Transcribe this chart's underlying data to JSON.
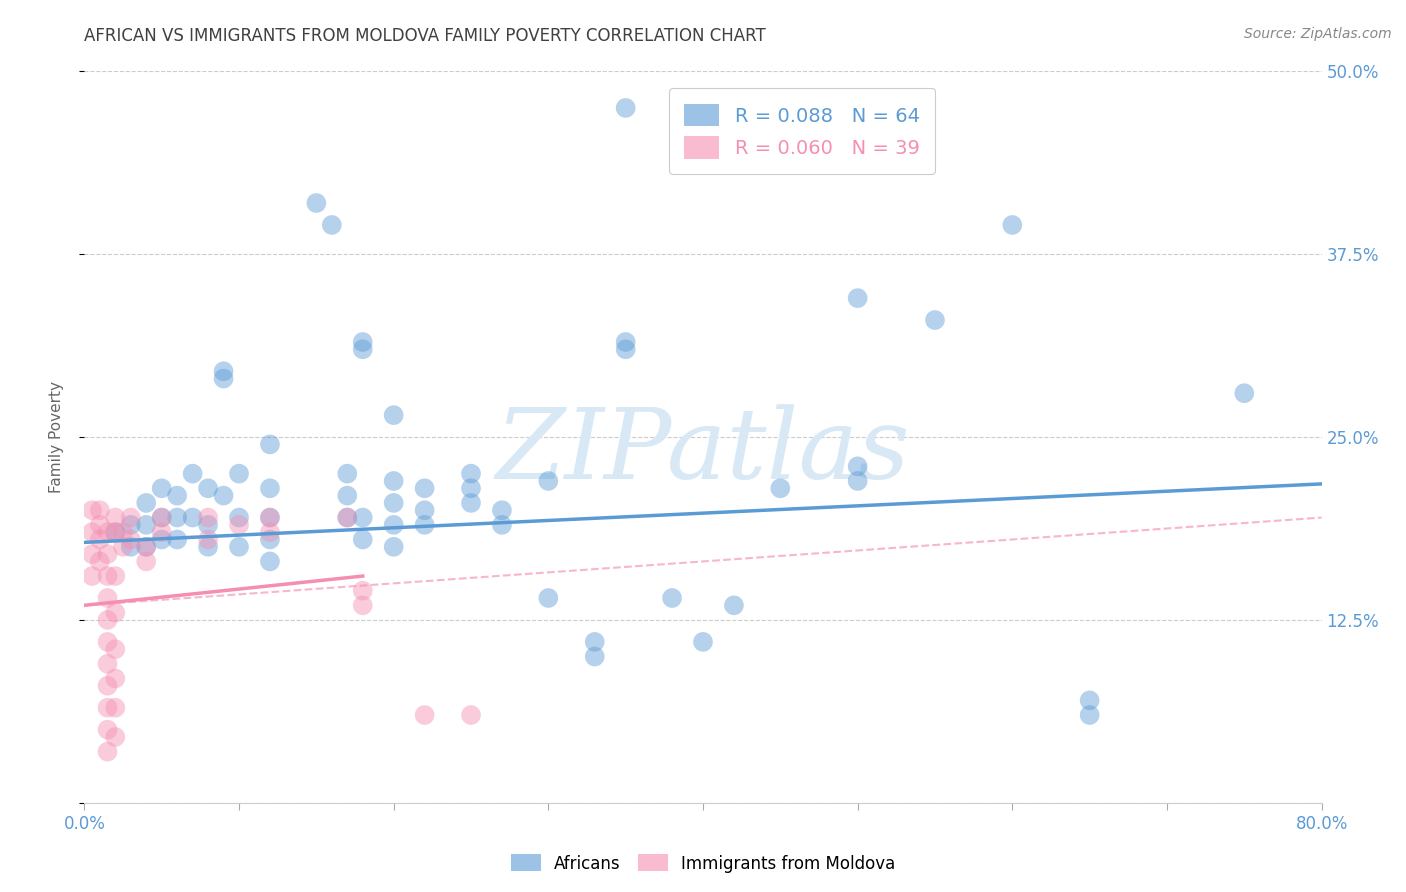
{
  "title": "AFRICAN VS IMMIGRANTS FROM MOLDOVA FAMILY POVERTY CORRELATION CHART",
  "source": "Source: ZipAtlas.com",
  "ylabel": "Family Poverty",
  "xlim": [
    0.0,
    0.8
  ],
  "ylim": [
    0.0,
    0.5
  ],
  "xticks": [
    0.0,
    0.1,
    0.2,
    0.3,
    0.4,
    0.5,
    0.6,
    0.7,
    0.8
  ],
  "yticks": [
    0.0,
    0.125,
    0.25,
    0.375,
    0.5
  ],
  "yticklabels_right": [
    "",
    "12.5%",
    "25.0%",
    "37.5%",
    "50.0%"
  ],
  "watermark": "ZIPatlas",
  "blue_color": "#5b9bd5",
  "pink_color": "#f48fb1",
  "blue_scatter": [
    [
      0.02,
      0.185
    ],
    [
      0.03,
      0.19
    ],
    [
      0.03,
      0.175
    ],
    [
      0.04,
      0.205
    ],
    [
      0.04,
      0.19
    ],
    [
      0.04,
      0.175
    ],
    [
      0.05,
      0.215
    ],
    [
      0.05,
      0.195
    ],
    [
      0.05,
      0.18
    ],
    [
      0.06,
      0.21
    ],
    [
      0.06,
      0.195
    ],
    [
      0.06,
      0.18
    ],
    [
      0.07,
      0.225
    ],
    [
      0.07,
      0.195
    ],
    [
      0.08,
      0.215
    ],
    [
      0.08,
      0.19
    ],
    [
      0.08,
      0.175
    ],
    [
      0.09,
      0.21
    ],
    [
      0.09,
      0.29
    ],
    [
      0.09,
      0.295
    ],
    [
      0.1,
      0.225
    ],
    [
      0.1,
      0.195
    ],
    [
      0.1,
      0.175
    ],
    [
      0.12,
      0.245
    ],
    [
      0.12,
      0.215
    ],
    [
      0.12,
      0.195
    ],
    [
      0.12,
      0.18
    ],
    [
      0.12,
      0.165
    ],
    [
      0.15,
      0.41
    ],
    [
      0.16,
      0.395
    ],
    [
      0.17,
      0.225
    ],
    [
      0.17,
      0.21
    ],
    [
      0.17,
      0.195
    ],
    [
      0.18,
      0.315
    ],
    [
      0.18,
      0.31
    ],
    [
      0.18,
      0.195
    ],
    [
      0.18,
      0.18
    ],
    [
      0.2,
      0.265
    ],
    [
      0.2,
      0.22
    ],
    [
      0.2,
      0.205
    ],
    [
      0.2,
      0.19
    ],
    [
      0.2,
      0.175
    ],
    [
      0.22,
      0.215
    ],
    [
      0.22,
      0.2
    ],
    [
      0.22,
      0.19
    ],
    [
      0.25,
      0.225
    ],
    [
      0.25,
      0.215
    ],
    [
      0.25,
      0.205
    ],
    [
      0.27,
      0.2
    ],
    [
      0.27,
      0.19
    ],
    [
      0.3,
      0.22
    ],
    [
      0.3,
      0.14
    ],
    [
      0.33,
      0.11
    ],
    [
      0.33,
      0.1
    ],
    [
      0.35,
      0.475
    ],
    [
      0.35,
      0.315
    ],
    [
      0.35,
      0.31
    ],
    [
      0.38,
      0.14
    ],
    [
      0.4,
      0.11
    ],
    [
      0.42,
      0.135
    ],
    [
      0.45,
      0.215
    ],
    [
      0.5,
      0.345
    ],
    [
      0.5,
      0.23
    ],
    [
      0.5,
      0.22
    ],
    [
      0.55,
      0.33
    ],
    [
      0.6,
      0.395
    ],
    [
      0.65,
      0.07
    ],
    [
      0.65,
      0.06
    ],
    [
      0.75,
      0.28
    ]
  ],
  "pink_scatter": [
    [
      0.005,
      0.2
    ],
    [
      0.005,
      0.185
    ],
    [
      0.005,
      0.17
    ],
    [
      0.005,
      0.155
    ],
    [
      0.01,
      0.2
    ],
    [
      0.01,
      0.19
    ],
    [
      0.01,
      0.18
    ],
    [
      0.01,
      0.165
    ],
    [
      0.015,
      0.185
    ],
    [
      0.015,
      0.17
    ],
    [
      0.015,
      0.155
    ],
    [
      0.015,
      0.14
    ],
    [
      0.015,
      0.125
    ],
    [
      0.015,
      0.11
    ],
    [
      0.015,
      0.095
    ],
    [
      0.015,
      0.08
    ],
    [
      0.015,
      0.065
    ],
    [
      0.015,
      0.05
    ],
    [
      0.015,
      0.035
    ],
    [
      0.02,
      0.195
    ],
    [
      0.02,
      0.185
    ],
    [
      0.02,
      0.155
    ],
    [
      0.02,
      0.13
    ],
    [
      0.02,
      0.105
    ],
    [
      0.02,
      0.085
    ],
    [
      0.02,
      0.065
    ],
    [
      0.02,
      0.045
    ],
    [
      0.025,
      0.185
    ],
    [
      0.025,
      0.175
    ],
    [
      0.03,
      0.195
    ],
    [
      0.03,
      0.18
    ],
    [
      0.04,
      0.175
    ],
    [
      0.04,
      0.165
    ],
    [
      0.05,
      0.195
    ],
    [
      0.05,
      0.185
    ],
    [
      0.08,
      0.195
    ],
    [
      0.08,
      0.18
    ],
    [
      0.1,
      0.19
    ],
    [
      0.12,
      0.195
    ],
    [
      0.12,
      0.185
    ],
    [
      0.17,
      0.195
    ],
    [
      0.18,
      0.145
    ],
    [
      0.18,
      0.135
    ],
    [
      0.22,
      0.06
    ],
    [
      0.25,
      0.06
    ]
  ],
  "blue_line": [
    [
      0.0,
      0.178
    ],
    [
      0.8,
      0.218
    ]
  ],
  "pink_line_solid": [
    [
      0.0,
      0.135
    ],
    [
      0.18,
      0.155
    ]
  ],
  "pink_line_dashed": [
    [
      0.0,
      0.135
    ],
    [
      0.8,
      0.195
    ]
  ],
  "background_color": "#ffffff",
  "grid_color": "#cccccc",
  "tick_color": "#5b9bd5",
  "title_color": "#404040",
  "source_color": "#888888",
  "watermark_color": "#d8e8f5",
  "figsize": [
    14.06,
    8.92
  ],
  "dpi": 100
}
